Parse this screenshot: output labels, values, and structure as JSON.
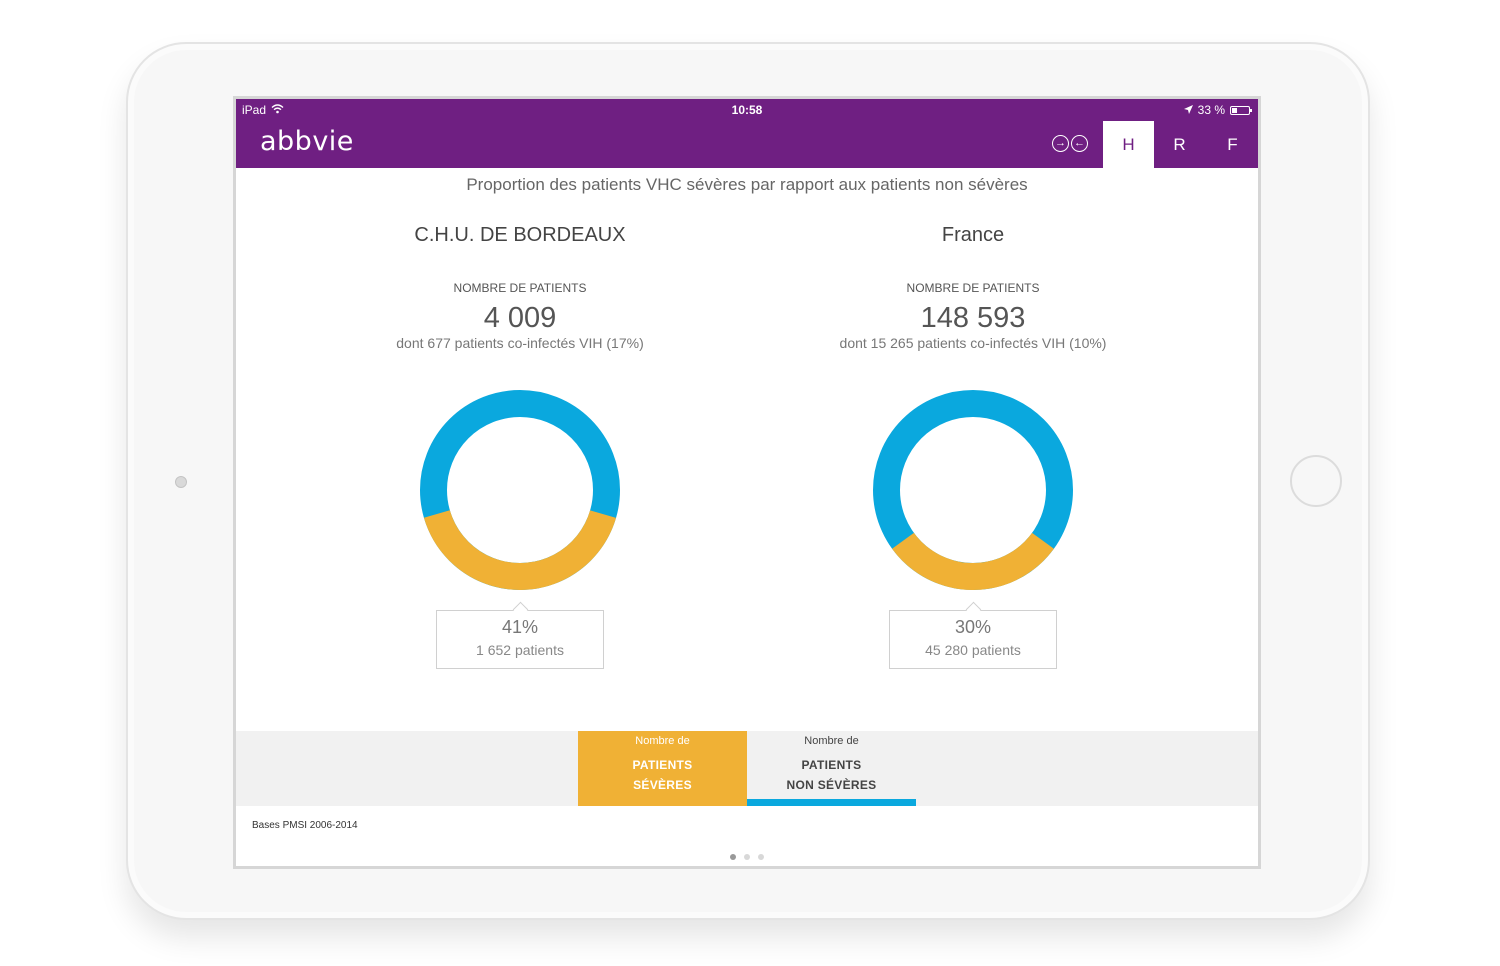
{
  "status": {
    "carrier": "iPad",
    "time": "10:58",
    "battery": "33 %",
    "battery_level": 0.33
  },
  "brand": {
    "logo_text": "abbvie",
    "color": "#6f1f82"
  },
  "nav": {
    "arrows": [
      "→",
      "←"
    ],
    "tabs": [
      {
        "label": "H",
        "active": true
      },
      {
        "label": "R",
        "active": false
      },
      {
        "label": "F",
        "active": false
      }
    ]
  },
  "page": {
    "title": "Proportion des patients VHC sévères par rapport aux patients non sévères"
  },
  "colors": {
    "severe": "#f0b135",
    "non_severe": "#0aa8de"
  },
  "panels": [
    {
      "name": "C.H.U. DE BORDEAUX",
      "caption": "NOMBRE DE PATIENTS",
      "count": "4 009",
      "sub": "dont 677 patients co-infectés VIH (17%)",
      "severe_fraction": 0.41,
      "callout_pct": "41%",
      "callout_patients": "1 652 patients"
    },
    {
      "name": "France",
      "caption": "NOMBRE DE PATIENTS",
      "count": "148 593",
      "sub": "dont 15 265 patients co-infectés VIH (10%)",
      "severe_fraction": 0.3,
      "callout_pct": "30%",
      "callout_patients": "45 280 patients"
    }
  ],
  "legend": {
    "severe": {
      "small": "Nombre de",
      "line1": "PATIENTS",
      "line2": "SÉVÈRES"
    },
    "non_severe": {
      "small": "Nombre de",
      "line1": "PATIENTS",
      "line2": "NON SÉVÈRES"
    }
  },
  "footer": {
    "source": "Bases PMSI 2006-2014",
    "pages": 3,
    "current_page": 1
  }
}
